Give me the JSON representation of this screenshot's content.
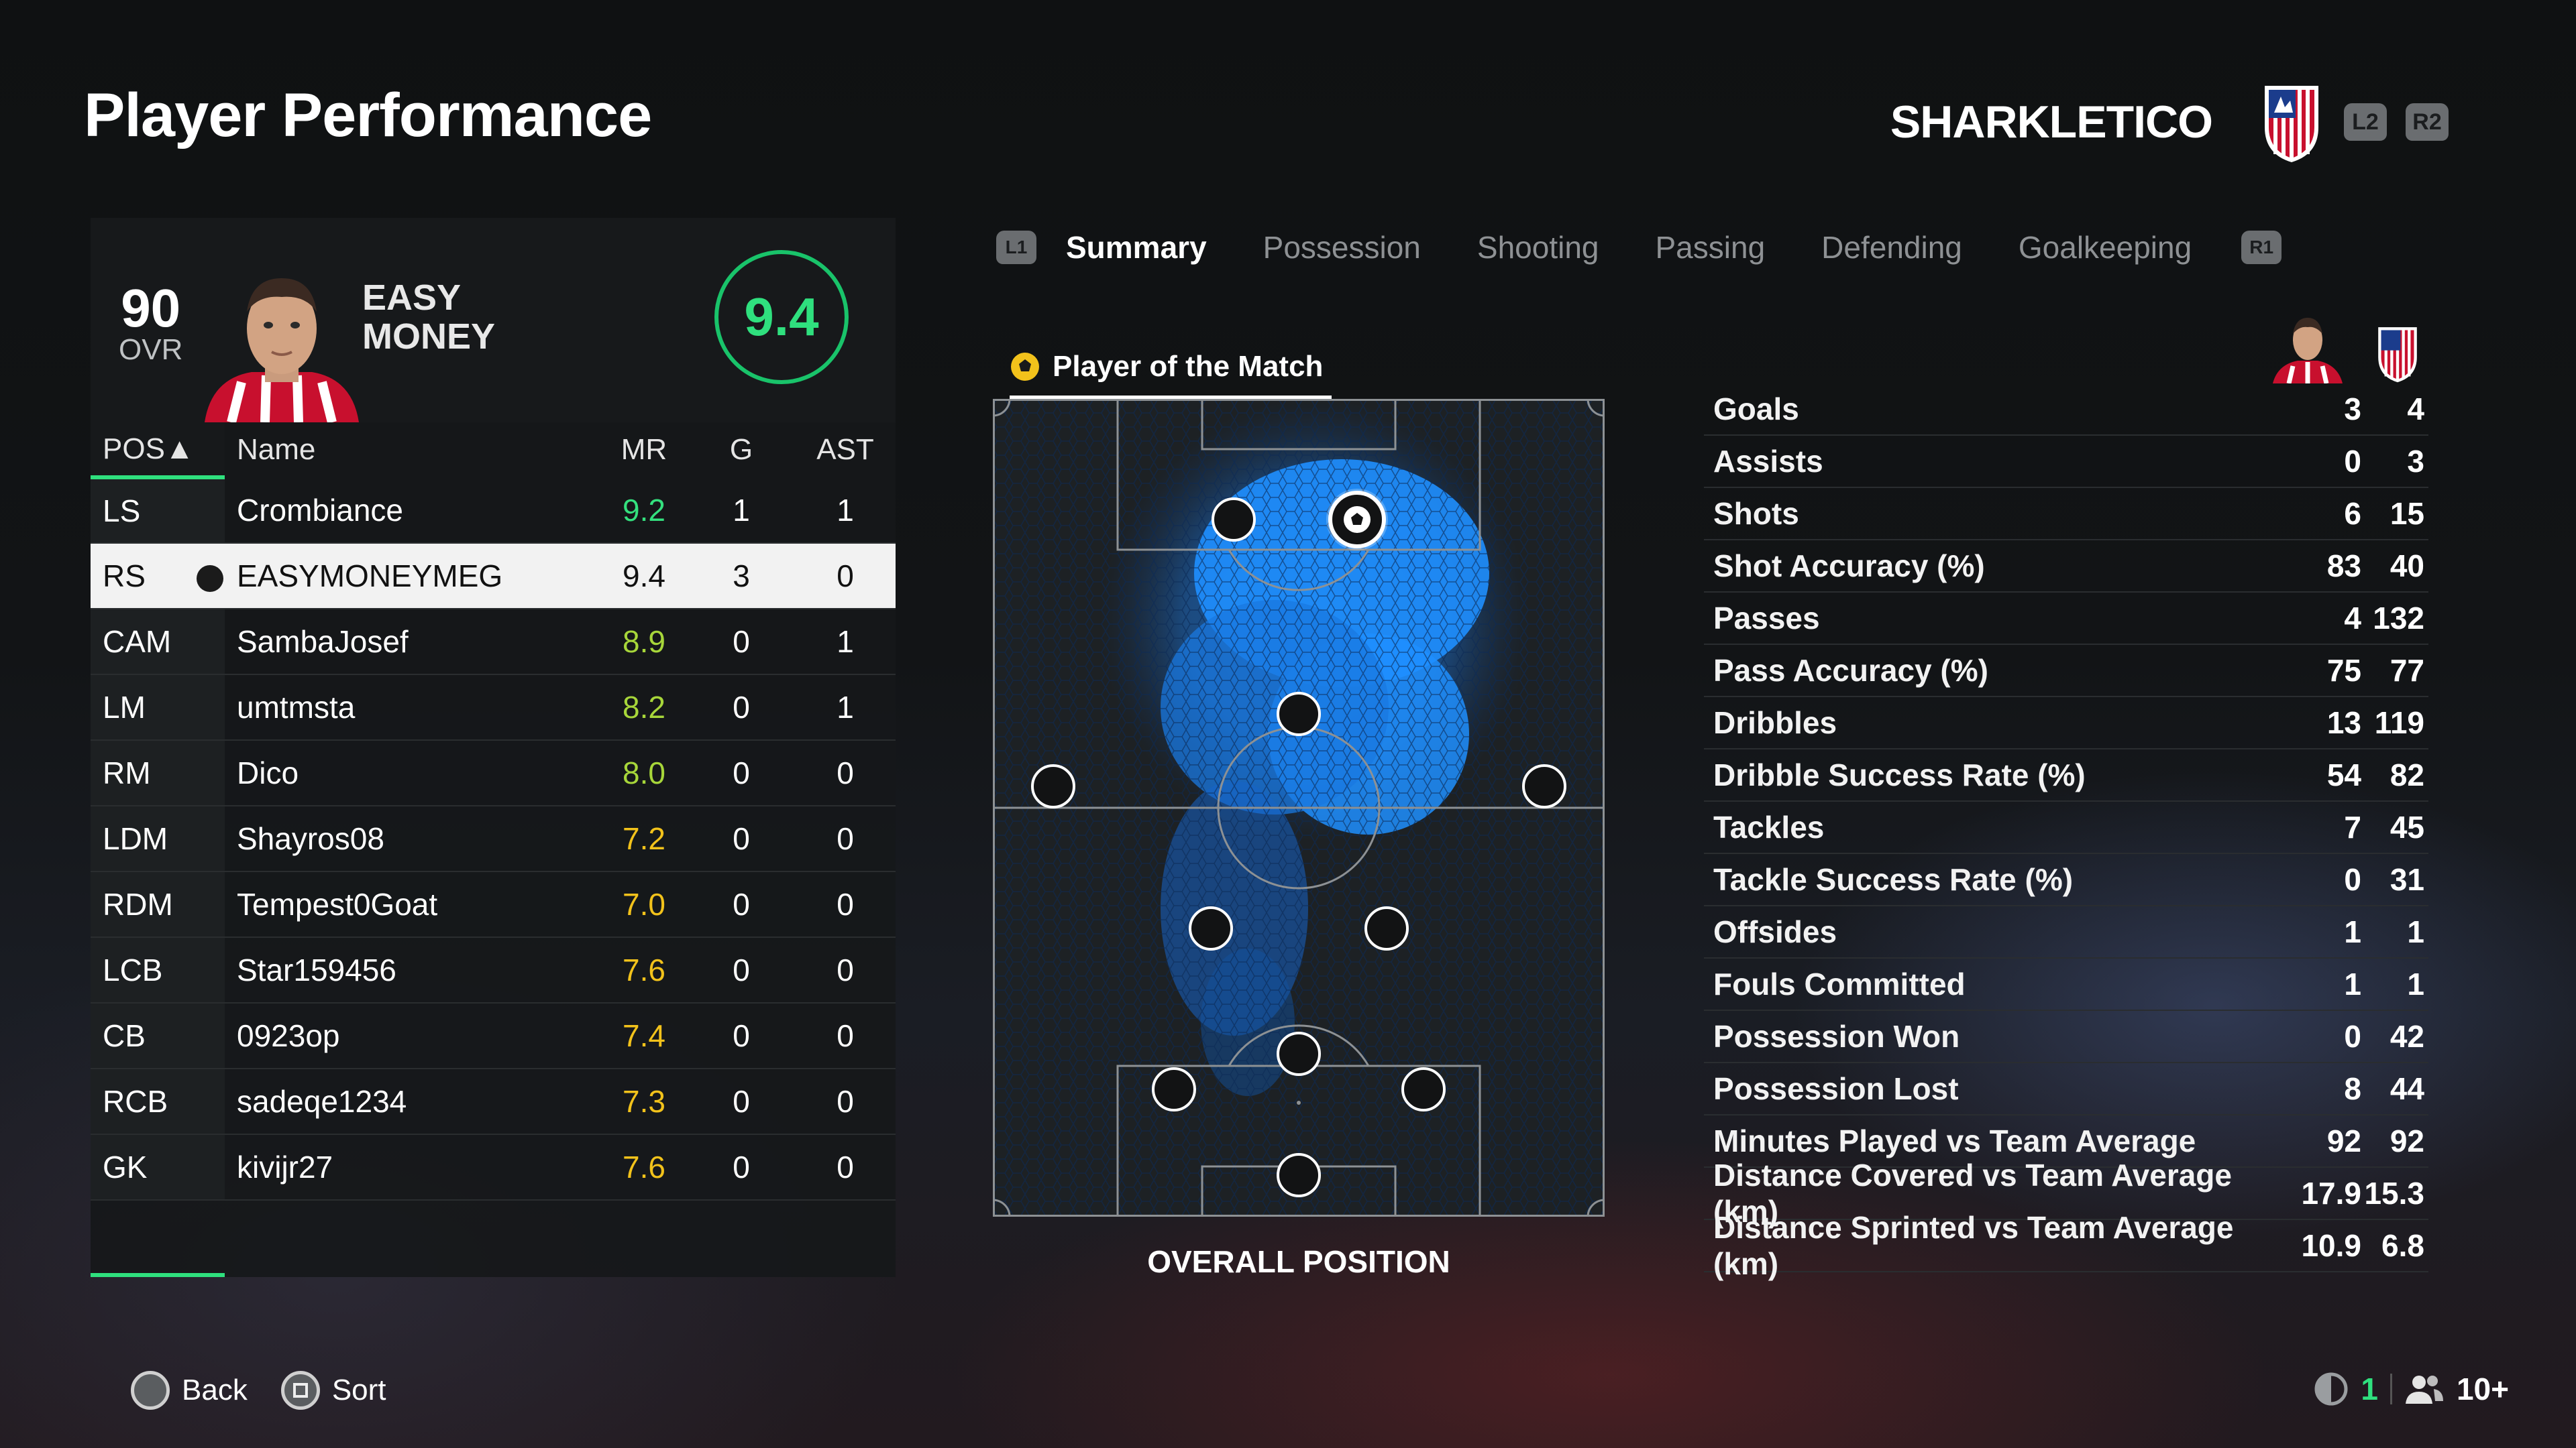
{
  "page_title": "Player Performance",
  "club": {
    "name": "SHARKLETICO",
    "prev_btn": "L2",
    "next_btn": "R2"
  },
  "player": {
    "ovr": "90",
    "ovr_label": "OVR",
    "first_name": "EASY",
    "last_name": "MONEY",
    "match_rating": "9.4"
  },
  "table": {
    "headers": {
      "pos": "POS▲",
      "name": "Name",
      "mr": "MR",
      "g": "G",
      "ast": "AST"
    },
    "rows": [
      {
        "pos": "LS",
        "name": "Crombiance",
        "mr": "9.2",
        "g": "1",
        "ast": "1",
        "mr_color": "green"
      },
      {
        "pos": "RS",
        "name": "EASYMONEYMEG",
        "mr": "9.4",
        "g": "3",
        "ast": "0",
        "selected": true
      },
      {
        "pos": "CAM",
        "name": "SambaJosef",
        "mr": "8.9",
        "g": "0",
        "ast": "1",
        "mr_color": "lime"
      },
      {
        "pos": "LM",
        "name": "umtmsta",
        "mr": "8.2",
        "g": "0",
        "ast": "1",
        "mr_color": "lime"
      },
      {
        "pos": "RM",
        "name": "Dico",
        "mr": "8.0",
        "g": "0",
        "ast": "0",
        "mr_color": "lime"
      },
      {
        "pos": "LDM",
        "name": "Shayros08",
        "mr": "7.2",
        "g": "0",
        "ast": "0",
        "mr_color": "yellow"
      },
      {
        "pos": "RDM",
        "name": "Tempest0Goat",
        "mr": "7.0",
        "g": "0",
        "ast": "0",
        "mr_color": "yellow"
      },
      {
        "pos": "LCB",
        "name": "Star159456",
        "mr": "7.6",
        "g": "0",
        "ast": "0",
        "mr_color": "yellow"
      },
      {
        "pos": "CB",
        "name": "0923op",
        "mr": "7.4",
        "g": "0",
        "ast": "0",
        "mr_color": "yellow"
      },
      {
        "pos": "RCB",
        "name": "sadeqe1234",
        "mr": "7.3",
        "g": "0",
        "ast": "0",
        "mr_color": "yellow"
      },
      {
        "pos": "GK",
        "name": "kivijr27",
        "mr": "7.6",
        "g": "0",
        "ast": "0",
        "mr_color": "yellow"
      }
    ]
  },
  "tabs": {
    "prev_btn": "L1",
    "next_btn": "R1",
    "items": [
      "Summary",
      "Possession",
      "Shooting",
      "Passing",
      "Defending",
      "Goalkeeping"
    ],
    "active": "Summary"
  },
  "pitch": {
    "award": "Player of the Match",
    "caption": "OVERALL POSITION"
  },
  "stats": [
    {
      "label": "Goals",
      "player": "3",
      "team": "4"
    },
    {
      "label": "Assists",
      "player": "0",
      "team": "3"
    },
    {
      "label": "Shots",
      "player": "6",
      "team": "15"
    },
    {
      "label": "Shot Accuracy (%)",
      "player": "83",
      "team": "40"
    },
    {
      "label": "Passes",
      "player": "4",
      "team": "132"
    },
    {
      "label": "Pass Accuracy (%)",
      "player": "75",
      "team": "77"
    },
    {
      "label": "Dribbles",
      "player": "13",
      "team": "119"
    },
    {
      "label": "Dribble Success Rate (%)",
      "player": "54",
      "team": "82"
    },
    {
      "label": "Tackles",
      "player": "7",
      "team": "45"
    },
    {
      "label": "Tackle Success Rate (%)",
      "player": "0",
      "team": "31"
    },
    {
      "label": "Offsides",
      "player": "1",
      "team": "1"
    },
    {
      "label": "Fouls Committed",
      "player": "1",
      "team": "1"
    },
    {
      "label": "Possession Won",
      "player": "0",
      "team": "42"
    },
    {
      "label": "Possession Lost",
      "player": "8",
      "team": "44"
    },
    {
      "label": "Minutes Played vs Team Average",
      "player": "92",
      "team": "92"
    },
    {
      "label": "Distance Covered vs Team Average (km)",
      "player": "17.9",
      "team": "15.3"
    },
    {
      "label": "Distance Sprinted vs Team Average (km)",
      "player": "10.9",
      "team": "6.8"
    }
  ],
  "footer": {
    "back": "Back",
    "sort": "Sort",
    "ping": "1",
    "players": "10+"
  },
  "colors": {
    "accent": "#2fe07e",
    "mr_green": "#34e07e",
    "mr_lime": "#a7d63a",
    "mr_yellow": "#f2c21b",
    "heat": "#1f8fff"
  }
}
